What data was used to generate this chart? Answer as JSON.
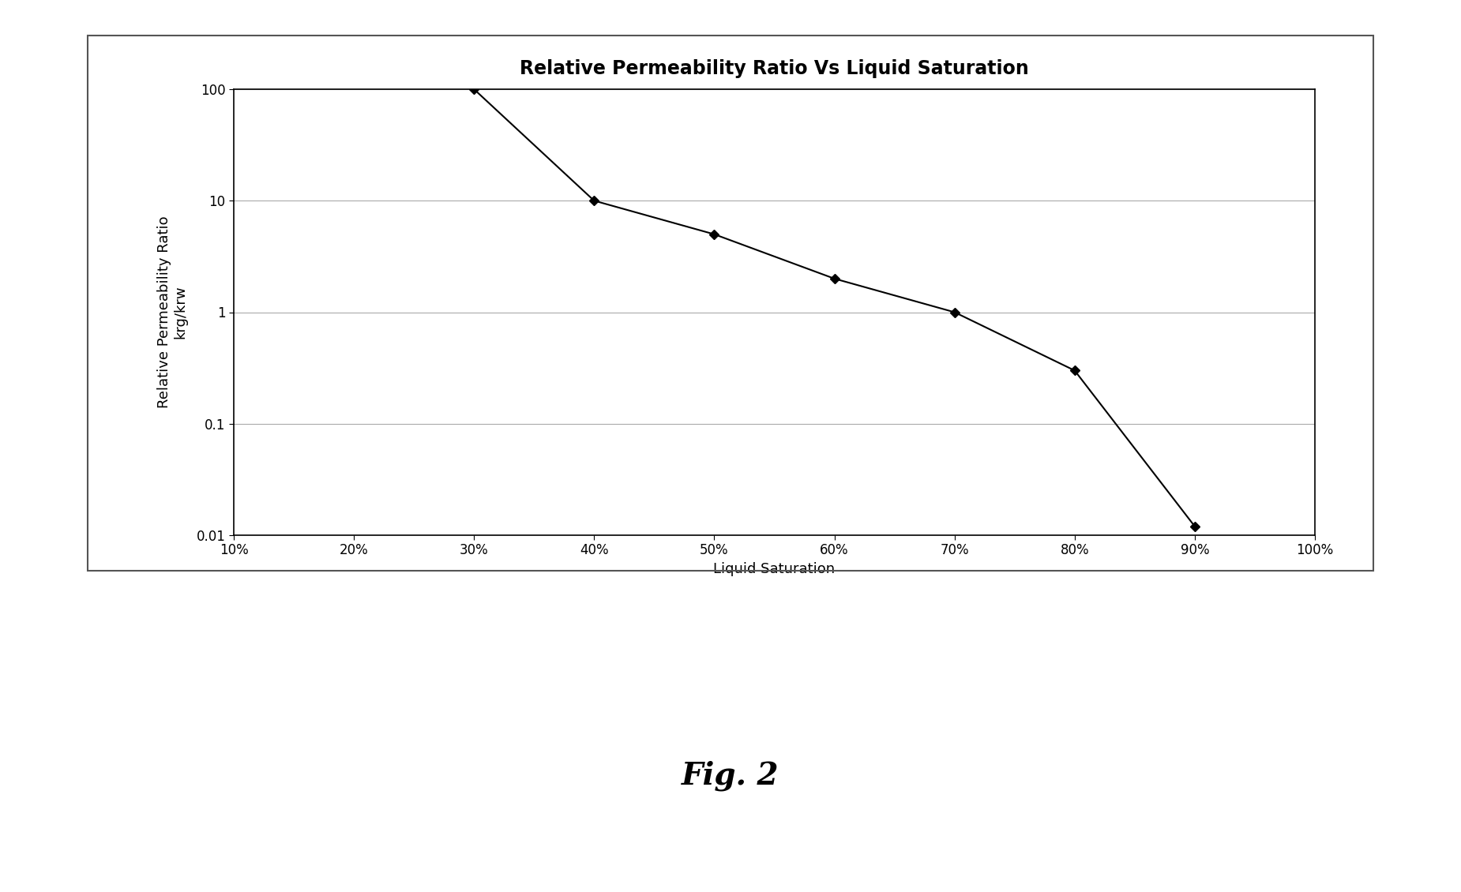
{
  "title": "Relative Permeability Ratio Vs Liquid Saturation",
  "xlabel": "Liquid Saturation",
  "ylabel": "Relative Permeability Ratio\nkrg/krw",
  "x_data": [
    0.3,
    0.4,
    0.5,
    0.6,
    0.7,
    0.8,
    0.9
  ],
  "y_data": [
    100,
    10,
    5,
    2,
    1.0,
    0.3,
    0.012
  ],
  "xlim": [
    0.1,
    1.0
  ],
  "ylim": [
    0.01,
    100
  ],
  "xticks": [
    0.1,
    0.2,
    0.3,
    0.4,
    0.5,
    0.6,
    0.7,
    0.8,
    0.9,
    1.0
  ],
  "xtick_labels": [
    "10%",
    "20%",
    "30%",
    "40%",
    "50%",
    "60%",
    "70%",
    "80%",
    "90%",
    "100%"
  ],
  "yticks": [
    0.01,
    0.1,
    1,
    10,
    100
  ],
  "ytick_labels": [
    "0.01",
    "0.1",
    "1",
    "10",
    "100"
  ],
  "line_color": "#000000",
  "marker": "D",
  "marker_color": "#000000",
  "marker_size": 6,
  "line_width": 1.5,
  "background_color": "#ffffff",
  "fig_caption": "Fig. 2",
  "title_fontsize": 17,
  "label_fontsize": 13,
  "tick_fontsize": 12,
  "caption_fontsize": 28,
  "grid_color": "#aaaaaa",
  "border_color": "#555555"
}
